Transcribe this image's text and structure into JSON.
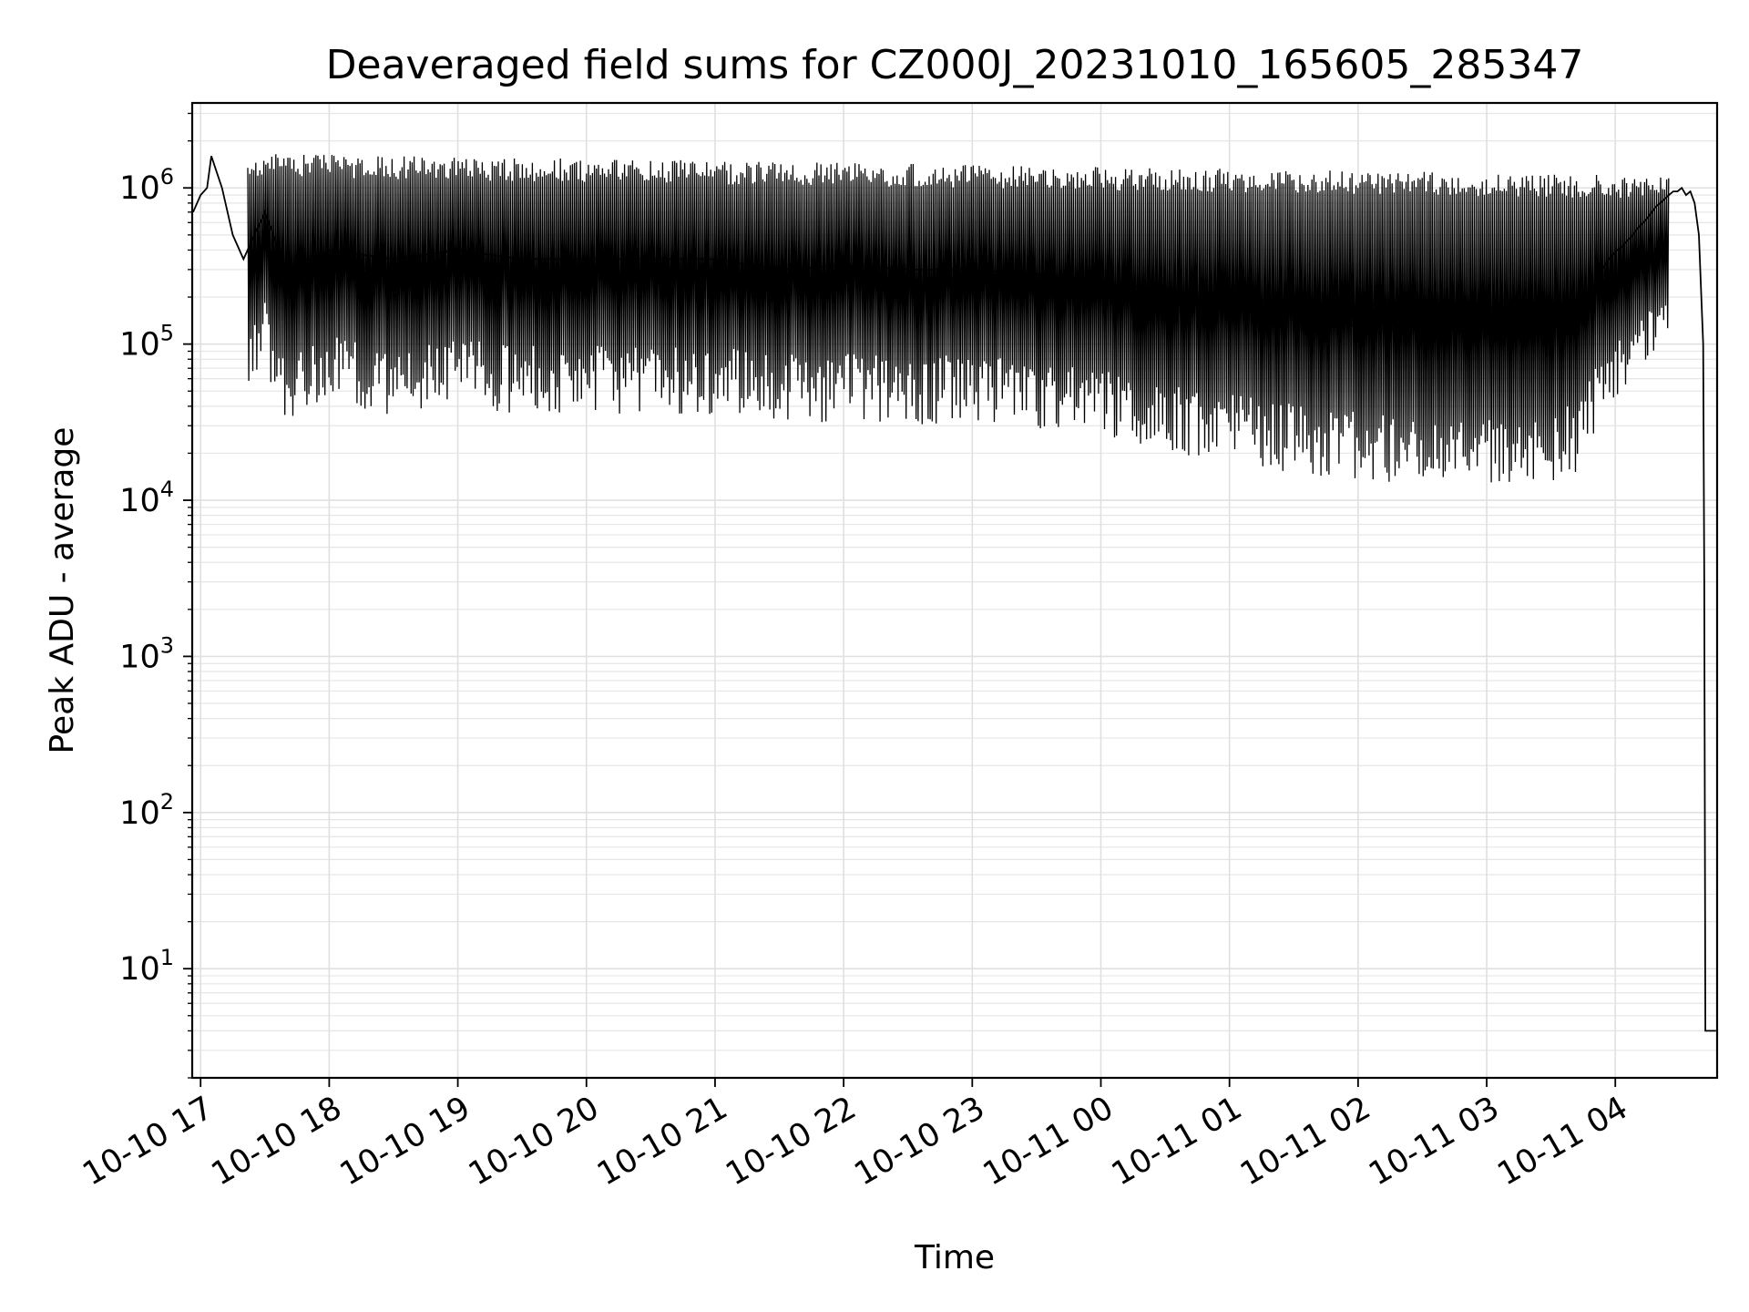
{
  "chart_data": {
    "type": "line",
    "title": "Deaveraged field sums for CZ000J_20231010_165605_285347",
    "xlabel": "Time",
    "ylabel": "Peak ADU - average",
    "yscale": "log",
    "ylim": [
      2,
      3500000
    ],
    "xlim": [
      "2023-10-10 16:56:05",
      "2023-10-11 04:47:30"
    ],
    "grid": true,
    "color": "#000000",
    "yticks": [
      {
        "value": 10,
        "base": "10",
        "exp": "1"
      },
      {
        "value": 100,
        "base": "10",
        "exp": "2"
      },
      {
        "value": 1000,
        "base": "10",
        "exp": "3"
      },
      {
        "value": 10000,
        "base": "10",
        "exp": "4"
      },
      {
        "value": 100000,
        "base": "10",
        "exp": "5"
      },
      {
        "value": 1000000,
        "base": "10",
        "exp": "6"
      }
    ],
    "xticks": [
      {
        "value": "2023-10-10 17:00",
        "label": "10-10 17"
      },
      {
        "value": "2023-10-10 18:00",
        "label": "10-10 18"
      },
      {
        "value": "2023-10-10 19:00",
        "label": "10-10 19"
      },
      {
        "value": "2023-10-10 20:00",
        "label": "10-10 20"
      },
      {
        "value": "2023-10-10 21:00",
        "label": "10-10 21"
      },
      {
        "value": "2023-10-10 22:00",
        "label": "10-10 22"
      },
      {
        "value": "2023-10-10 23:00",
        "label": "10-10 23"
      },
      {
        "value": "2023-10-11 00:00",
        "label": "10-11 00"
      },
      {
        "value": "2023-10-11 01:00",
        "label": "10-11 01"
      },
      {
        "value": "2023-10-11 02:00",
        "label": "10-11 02"
      },
      {
        "value": "2023-10-11 03:00",
        "label": "10-11 03"
      },
      {
        "value": "2023-10-11 04:00",
        "label": "10-11 04"
      }
    ],
    "series": [
      {
        "x": [
          "2023-10-10 16:56:30",
          "2023-10-10 17:00:00",
          "2023-10-10 17:03:00",
          "2023-10-10 17:05:00",
          "2023-10-10 17:10:00",
          "2023-10-10 17:15:00",
          "2023-10-10 17:20:00",
          "2023-10-10 17:30:00",
          "2023-10-10 17:40:00",
          "2023-10-10 18:00:00",
          "2023-10-10 18:30:00",
          "2023-10-10 19:00:00",
          "2023-10-10 19:30:00",
          "2023-10-10 20:00:00",
          "2023-10-10 20:30:00",
          "2023-10-10 21:00:00",
          "2023-10-10 21:30:00",
          "2023-10-10 22:00:00",
          "2023-10-10 22:30:00",
          "2023-10-10 23:00:00",
          "2023-10-10 23:30:00",
          "2023-10-11 00:00:00",
          "2023-10-11 00:30:00",
          "2023-10-11 01:00:00",
          "2023-10-11 01:30:00",
          "2023-10-11 02:00:00",
          "2023-10-11 02:30:00",
          "2023-10-11 03:00:00",
          "2023-10-11 03:10:00",
          "2023-10-11 03:20:00",
          "2023-10-11 03:30:00",
          "2023-10-11 03:35:00",
          "2023-10-11 03:40:00",
          "2023-10-11 03:42:00",
          "2023-10-11 03:45:00",
          "2023-10-11 03:47:00",
          "2023-10-11 03:49:00",
          "2023-10-11 03:51:00",
          "2023-10-11 03:53:00",
          "2023-10-11 03:55:00",
          "2023-10-11 03:57:00",
          "2023-10-11 04:00:00",
          "2023-10-11 04:03:00",
          "2023-10-11 04:05:00",
          "2023-10-11 04:07:00",
          "2023-10-11 04:09:00",
          "2023-10-11 04:11:00",
          "2023-10-11 04:13:00",
          "2023-10-11 04:15:00",
          "2023-10-11 04:17:00",
          "2023-10-11 04:19:00",
          "2023-10-11 04:21:00",
          "2023-10-11 04:23:00",
          "2023-10-11 04:25:00",
          "2023-10-11 04:27:00",
          "2023-10-11 04:29:00",
          "2023-10-11 04:31:00",
          "2023-10-11 04:33:00",
          "2023-10-11 04:35:00",
          "2023-10-11 04:37:00",
          "2023-10-11 04:39:00",
          "2023-10-11 04:41:00",
          "2023-10-11 04:41:30",
          "2023-10-11 04:42:00",
          "2023-10-11 04:44:00",
          "2023-10-11 04:47:00"
        ],
        "y": [
          700000,
          900000,
          1000000,
          1600000,
          1000000,
          500000,
          350000,
          700000,
          300000,
          400000,
          350000,
          400000,
          350000,
          350000,
          350000,
          350000,
          300000,
          320000,
          300000,
          300000,
          280000,
          250000,
          200000,
          170000,
          150000,
          130000,
          120000,
          120000,
          110000,
          110000,
          120000,
          140000,
          150000,
          150000,
          170000,
          200000,
          230000,
          260000,
          290000,
          320000,
          350000,
          390000,
          420000,
          450000,
          480000,
          520000,
          560000,
          600000,
          640000,
          700000,
          760000,
          800000,
          850000,
          900000,
          950000,
          950000,
          1000000,
          900000,
          950000,
          800000,
          500000,
          100000,
          3000,
          4,
          4,
          4
        ]
      }
    ]
  }
}
